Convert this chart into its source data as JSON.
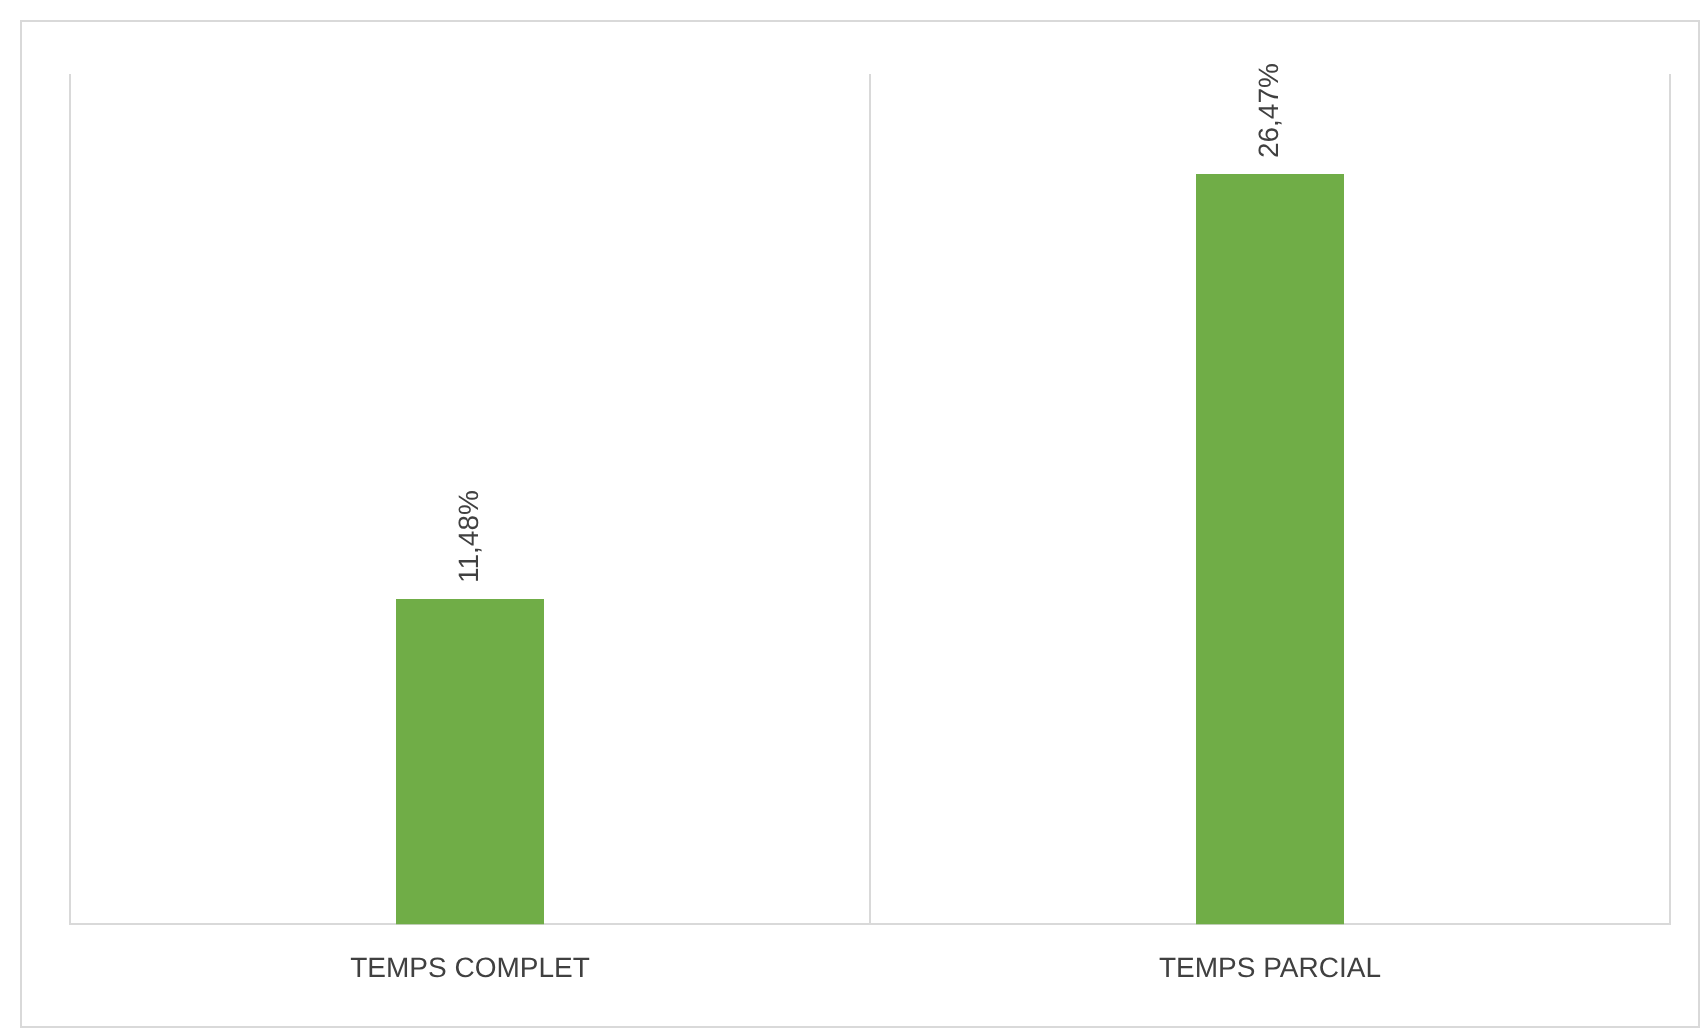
{
  "chart_data": {
    "type": "bar",
    "categories": [
      "TEMPS COMPLET",
      "TEMPS PARCIAL"
    ],
    "values": [
      11.48,
      26.47
    ],
    "color": "#70ad47",
    "value_labels": [
      "11,48%",
      "26,47%"
    ],
    "grid": "x"
  }
}
